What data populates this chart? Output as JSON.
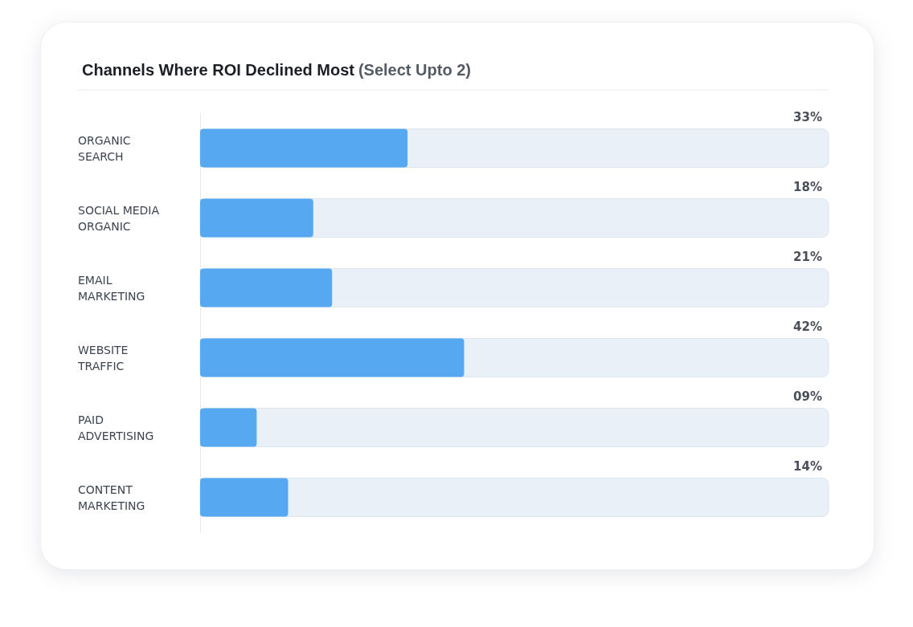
{
  "chart_data": {
    "type": "bar",
    "orientation": "horizontal",
    "title": "Channels Where ROI Declined Most",
    "subtitle": "(Select Upto 2)",
    "categories": [
      "ORGANIC SEARCH",
      "SOCIAL MEDIA ORGANIC",
      "EMAIL MARKETING",
      "WEBSITE TRAFFIC",
      "PAID ADVERTISING",
      "CONTENT MARKETING"
    ],
    "values": [
      33,
      18,
      21,
      42,
      9,
      14
    ],
    "value_labels": [
      "33%",
      "18%",
      "21%",
      "42%",
      "09%",
      "14%"
    ],
    "color": "#56a9f0",
    "xlim": [
      0,
      100
    ],
    "tick_labels": "y",
    "grid": false
  }
}
